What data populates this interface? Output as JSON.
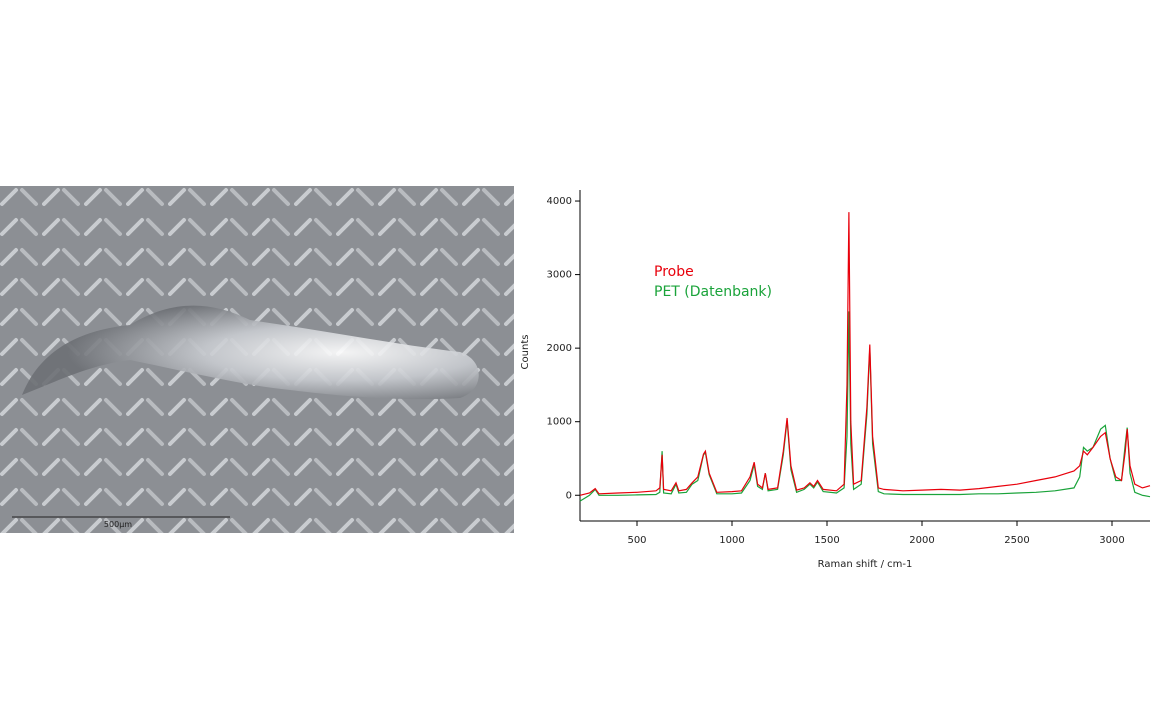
{
  "image": {
    "scale_label": "500µm"
  },
  "chart_data": {
    "type": "line",
    "x_label": "Raman shift / cm-1",
    "y_label": "Counts",
    "x": [
      200,
      250,
      280,
      300,
      400,
      500,
      600,
      620,
      632,
      640,
      680,
      705,
      720,
      760,
      790,
      820,
      850,
      860,
      880,
      920,
      1000,
      1050,
      1095,
      1117,
      1135,
      1160,
      1175,
      1190,
      1240,
      1270,
      1290,
      1310,
      1340,
      1380,
      1410,
      1430,
      1450,
      1480,
      1550,
      1590,
      1605,
      1615,
      1625,
      1640,
      1680,
      1710,
      1725,
      1740,
      1770,
      1800,
      1900,
      2000,
      2100,
      2200,
      2300,
      2400,
      2500,
      2600,
      2700,
      2800,
      2830,
      2850,
      2870,
      2900,
      2940,
      2965,
      2990,
      3020,
      3050,
      3070,
      3080,
      3095,
      3120,
      3160,
      3200
    ],
    "series": [
      {
        "name": "Probe",
        "color": "#e8000b",
        "values": [
          0,
          30,
          90,
          20,
          30,
          40,
          60,
          100,
          550,
          80,
          60,
          170,
          60,
          80,
          170,
          250,
          560,
          600,
          300,
          40,
          50,
          60,
          250,
          450,
          150,
          100,
          300,
          80,
          100,
          600,
          1050,
          400,
          70,
          100,
          170,
          120,
          200,
          80,
          60,
          150,
          1500,
          3850,
          1000,
          150,
          200,
          1200,
          2050,
          800,
          100,
          80,
          60,
          70,
          80,
          70,
          90,
          120,
          150,
          200,
          250,
          330,
          400,
          600,
          550,
          650,
          800,
          850,
          500,
          250,
          200,
          600,
          900,
          400,
          150,
          100,
          130
        ]
      },
      {
        "name": "PET (Datenbank)",
        "color": "#1aa33a",
        "values": [
          -80,
          0,
          80,
          0,
          0,
          5,
          10,
          40,
          600,
          30,
          20,
          150,
          30,
          40,
          150,
          200,
          550,
          580,
          280,
          20,
          20,
          30,
          200,
          420,
          120,
          80,
          300,
          60,
          80,
          550,
          1020,
          350,
          40,
          80,
          150,
          100,
          180,
          50,
          30,
          100,
          800,
          2500,
          700,
          80,
          150,
          1100,
          2000,
          700,
          50,
          20,
          10,
          10,
          10,
          10,
          20,
          20,
          30,
          40,
          60,
          100,
          250,
          650,
          600,
          650,
          900,
          950,
          500,
          200,
          200,
          700,
          920,
          300,
          40,
          0,
          -20
        ]
      }
    ],
    "xlim": [
      200,
      3200
    ],
    "ylim": [
      -350,
      4150
    ],
    "xticks": [
      500,
      1000,
      1500,
      2000,
      2500,
      3000
    ],
    "yticks": [
      0,
      1000,
      2000,
      3000,
      4000
    ],
    "legend": "upper left"
  }
}
